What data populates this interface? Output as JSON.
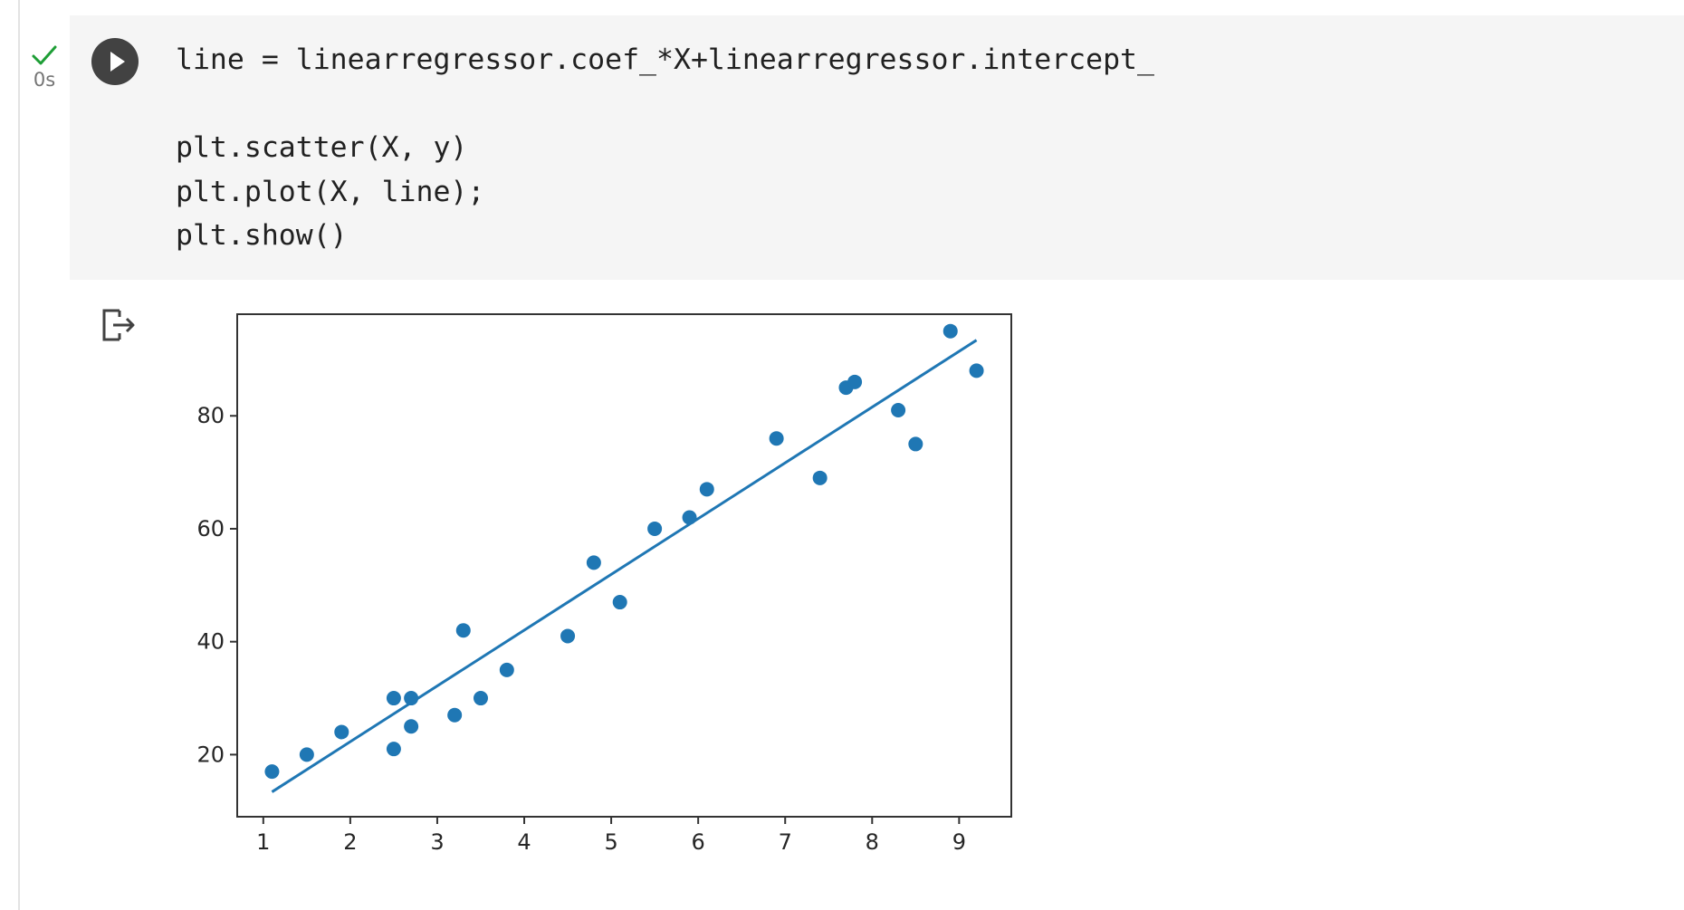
{
  "cell": {
    "status_label": "0s",
    "code_lines": [
      "line = linearregressor.coef_*X+linearregressor.intercept_",
      "",
      "plt.scatter(X, y)",
      "plt.plot(X, line);",
      "plt.show()"
    ]
  },
  "icons": {
    "status": "check-icon",
    "run": "play-icon",
    "output": "output-redirect-icon"
  },
  "colors": {
    "accent": "#1f77b4",
    "check": "#1e9e36",
    "cell_background": "#f5f5f5",
    "run_button": "#424242"
  },
  "chart_data": {
    "type": "scatter",
    "title": "",
    "xlabel": "",
    "ylabel": "",
    "xlim": [
      0.7,
      9.6
    ],
    "ylim": [
      9,
      98
    ],
    "xticks": [
      1,
      2,
      3,
      4,
      5,
      6,
      7,
      8,
      9
    ],
    "yticks": [
      20,
      40,
      60,
      80
    ],
    "grid": false,
    "legend": "none",
    "series": [
      {
        "type": "scatter",
        "points": [
          [
            1.1,
            17
          ],
          [
            1.5,
            20
          ],
          [
            1.9,
            24
          ],
          [
            2.5,
            21
          ],
          [
            2.5,
            30
          ],
          [
            2.7,
            25
          ],
          [
            2.7,
            30
          ],
          [
            3.2,
            27
          ],
          [
            3.3,
            42
          ],
          [
            3.5,
            30
          ],
          [
            3.8,
            35
          ],
          [
            4.5,
            41
          ],
          [
            4.8,
            54
          ],
          [
            5.1,
            47
          ],
          [
            5.5,
            60
          ],
          [
            5.9,
            62
          ],
          [
            6.1,
            67
          ],
          [
            6.9,
            76
          ],
          [
            7.4,
            69
          ],
          [
            7.7,
            85
          ],
          [
            7.8,
            86
          ],
          [
            8.3,
            81
          ],
          [
            8.5,
            75
          ],
          [
            8.9,
            95
          ],
          [
            9.2,
            88
          ]
        ]
      },
      {
        "type": "line",
        "points": [
          [
            1.1,
            13.4
          ],
          [
            9.2,
            93.4
          ]
        ]
      }
    ]
  }
}
